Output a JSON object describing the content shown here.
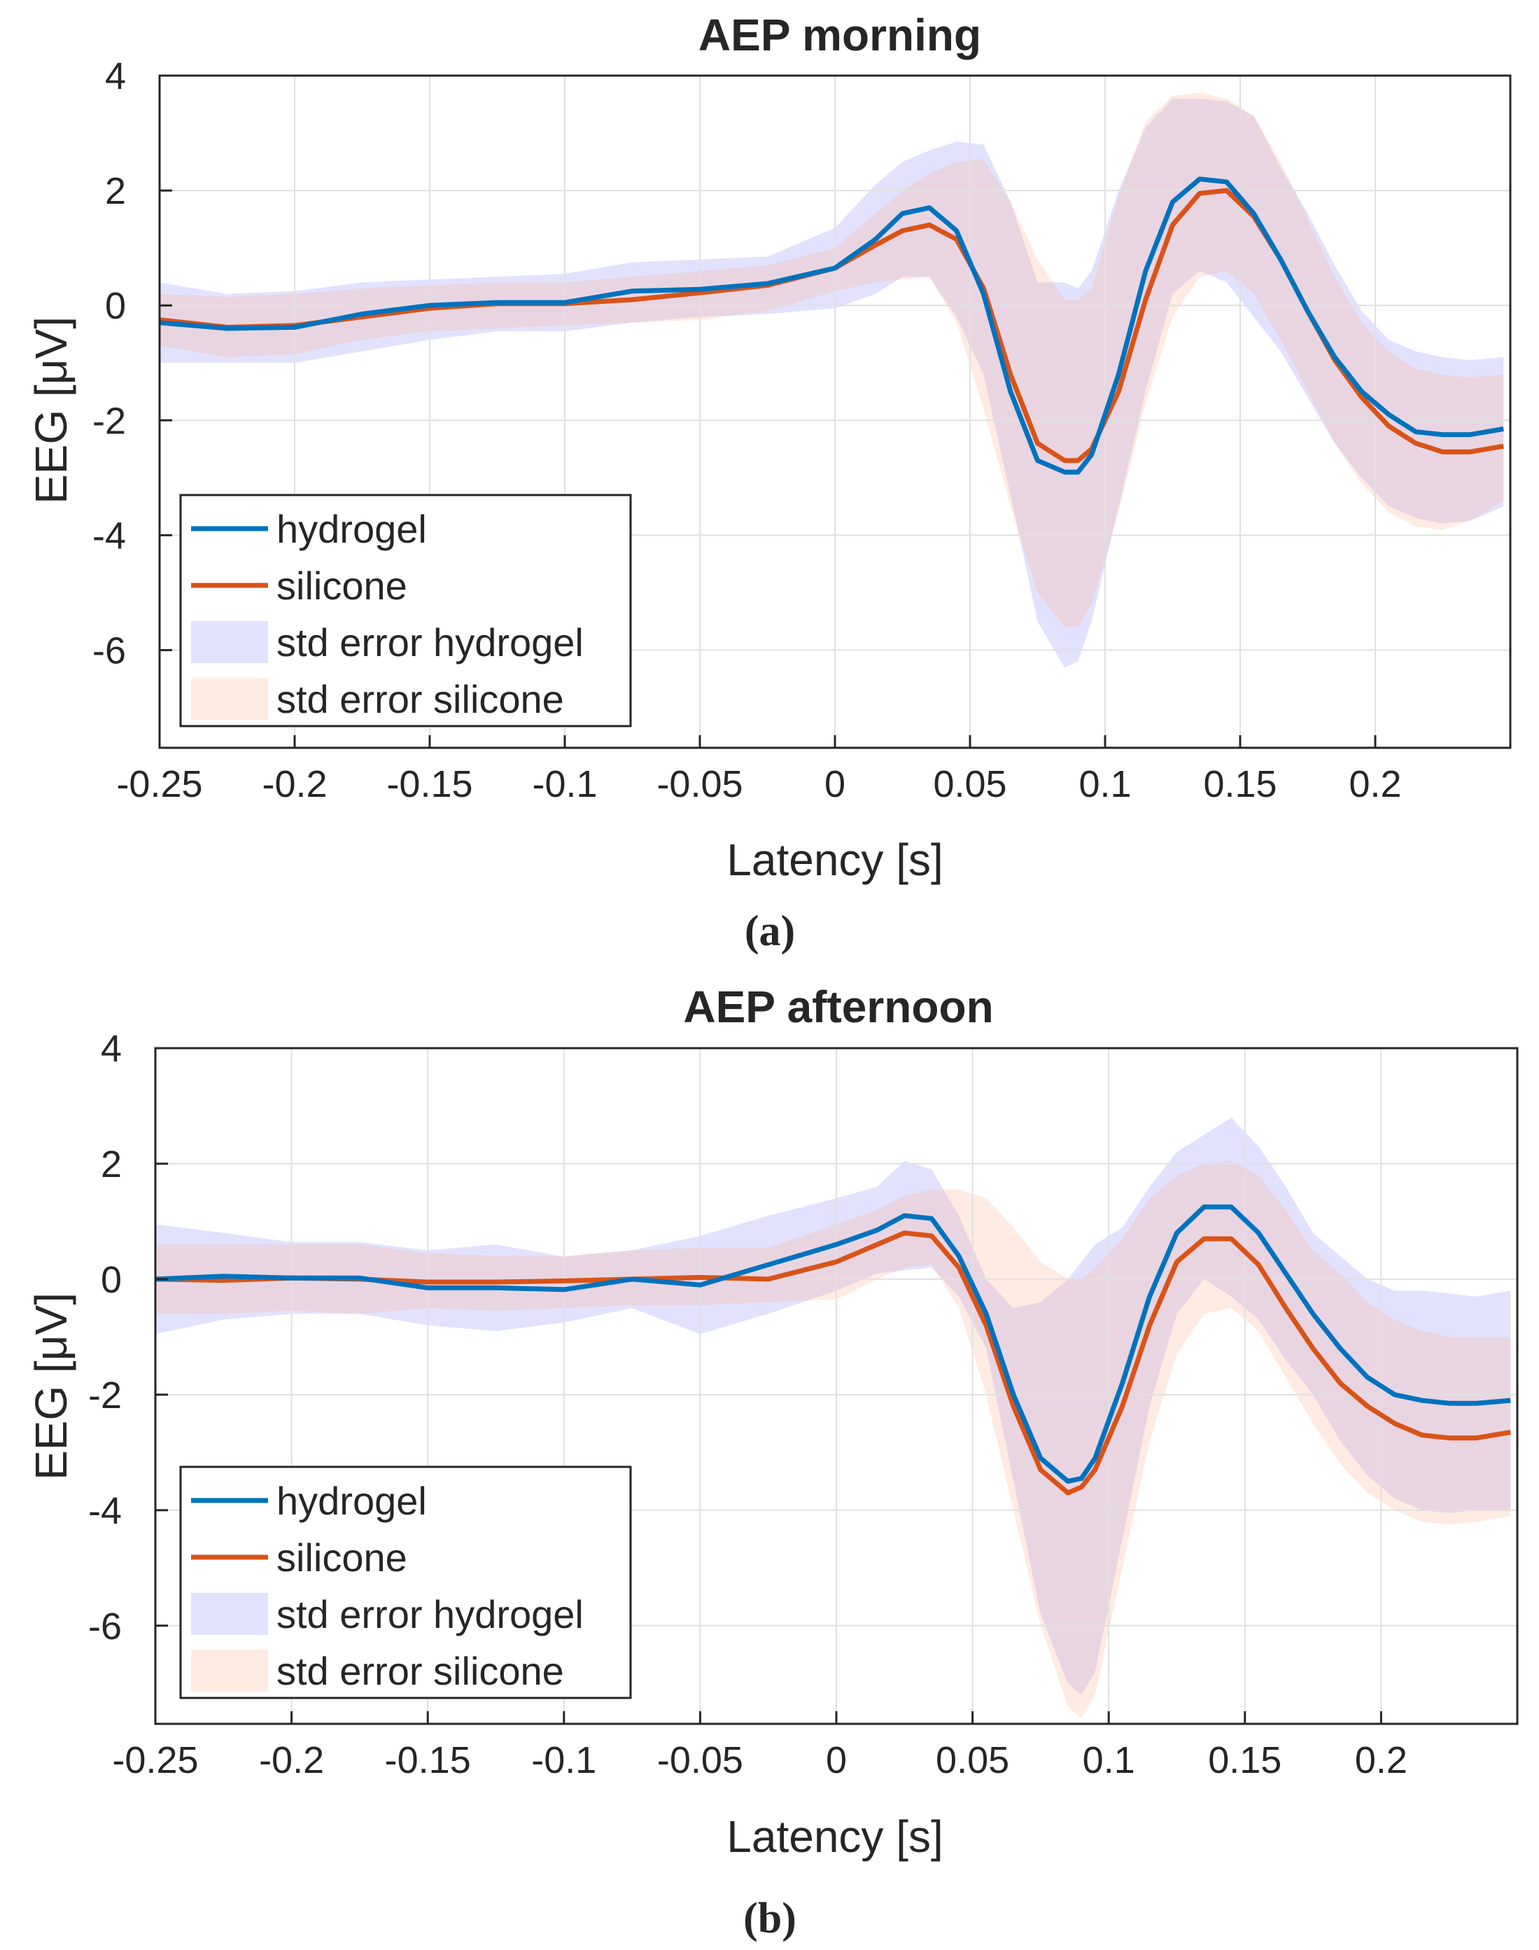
{
  "colors": {
    "hydrogel": "#0072BD",
    "silicone": "#D95319",
    "hydrogel_band": "#8c8cff",
    "silicone_band": "#ffb08c",
    "grid": "#e0e0e0",
    "axis": "#262626"
  },
  "chart_data": [
    {
      "type": "line",
      "title": "AEP morning",
      "caption": "(a)",
      "xlabel": "Latency [s]",
      "ylabel": "EEG [μV]",
      "xlim": [
        -0.25,
        0.25
      ],
      "ylim": [
        -7.7,
        4
      ],
      "xticks": [
        -0.25,
        -0.2,
        -0.15,
        -0.1,
        -0.05,
        0,
        0.05,
        0.1,
        0.15,
        0.2
      ],
      "xtick_labels": [
        "-0.25",
        "-0.2",
        "-0.15",
        "-0.1",
        "-0.05",
        "0",
        "0.05",
        "0.1",
        "0.15",
        "0.2"
      ],
      "yticks": [
        -6,
        -4,
        -2,
        0,
        2,
        4
      ],
      "ytick_labels": [
        "-6",
        "-4",
        "-2",
        "0",
        "2",
        "4"
      ],
      "grid": true,
      "legend_position": "bottom-left",
      "legend": [
        "hydrogel",
        "silicone",
        "std error hydrogel",
        "std error silicone"
      ],
      "x": [
        -0.25,
        -0.225,
        -0.2,
        -0.175,
        -0.15,
        -0.125,
        -0.1,
        -0.075,
        -0.05,
        -0.025,
        0,
        0.015,
        0.025,
        0.035,
        0.045,
        0.055,
        0.065,
        0.075,
        0.085,
        0.09,
        0.095,
        0.105,
        0.115,
        0.125,
        0.135,
        0.145,
        0.155,
        0.165,
        0.175,
        0.185,
        0.195,
        0.205,
        0.215,
        0.225,
        0.235,
        0.2475
      ],
      "series": [
        {
          "name": "hydrogel",
          "kind": "line",
          "color_key": "hydrogel",
          "values": [
            -0.3,
            -0.4,
            -0.38,
            -0.15,
            0.0,
            0.05,
            0.05,
            0.25,
            0.28,
            0.38,
            0.65,
            1.15,
            1.6,
            1.7,
            1.3,
            0.2,
            -1.5,
            -2.7,
            -2.9,
            -2.9,
            -2.6,
            -1.2,
            0.6,
            1.8,
            2.2,
            2.15,
            1.6,
            0.8,
            -0.1,
            -0.9,
            -1.5,
            -1.9,
            -2.2,
            -2.25,
            -2.25,
            -2.15
          ]
        },
        {
          "name": "silicone",
          "kind": "line",
          "color_key": "silicone",
          "values": [
            -0.25,
            -0.38,
            -0.35,
            -0.2,
            -0.05,
            0.03,
            0.03,
            0.1,
            0.22,
            0.35,
            0.65,
            1.05,
            1.3,
            1.4,
            1.15,
            0.3,
            -1.2,
            -2.4,
            -2.7,
            -2.7,
            -2.5,
            -1.5,
            0.1,
            1.4,
            1.95,
            2.0,
            1.55,
            0.8,
            -0.1,
            -0.95,
            -1.6,
            -2.1,
            -2.4,
            -2.55,
            -2.55,
            -2.45
          ]
        },
        {
          "name": "std error hydrogel",
          "kind": "band",
          "color_key": "hydrogel_band",
          "lower": [
            -1.0,
            -1.0,
            -1.0,
            -0.8,
            -0.6,
            -0.45,
            -0.45,
            -0.3,
            -0.2,
            -0.15,
            -0.05,
            0.2,
            0.5,
            0.5,
            -0.2,
            -1.2,
            -3.3,
            -5.5,
            -6.3,
            -6.2,
            -5.5,
            -3.5,
            -1.5,
            0.2,
            0.6,
            0.4,
            -0.2,
            -0.8,
            -1.6,
            -2.4,
            -3.0,
            -3.5,
            -3.7,
            -3.8,
            -3.75,
            -3.5
          ],
          "upper": [
            0.4,
            0.2,
            0.25,
            0.4,
            0.45,
            0.5,
            0.55,
            0.75,
            0.8,
            0.85,
            1.35,
            2.1,
            2.5,
            2.7,
            2.85,
            2.8,
            1.8,
            0.4,
            0.4,
            0.3,
            0.6,
            2.0,
            3.1,
            3.6,
            3.6,
            3.55,
            3.3,
            2.4,
            1.6,
            0.7,
            -0.1,
            -0.6,
            -0.8,
            -0.9,
            -0.95,
            -0.9
          ]
        },
        {
          "name": "std error silicone",
          "kind": "band",
          "color_key": "silicone_band",
          "lower": [
            -0.7,
            -0.9,
            -0.85,
            -0.6,
            -0.45,
            -0.4,
            -0.35,
            -0.3,
            -0.25,
            -0.1,
            0.25,
            0.4,
            0.45,
            0.5,
            -0.3,
            -1.8,
            -3.5,
            -5.0,
            -5.6,
            -5.6,
            -5.2,
            -3.6,
            -1.7,
            -0.2,
            0.5,
            0.6,
            0.2,
            -0.6,
            -1.5,
            -2.4,
            -3.1,
            -3.6,
            -3.85,
            -3.9,
            -3.75,
            -3.4
          ],
          "upper": [
            0.2,
            0.15,
            0.2,
            0.3,
            0.35,
            0.4,
            0.4,
            0.5,
            0.6,
            0.7,
            1.0,
            1.6,
            2.0,
            2.3,
            2.5,
            2.55,
            1.8,
            0.8,
            0.1,
            0.1,
            0.3,
            1.9,
            3.2,
            3.65,
            3.7,
            3.6,
            3.3,
            2.5,
            1.5,
            0.5,
            -0.3,
            -0.8,
            -1.1,
            -1.2,
            -1.25,
            -1.2
          ]
        }
      ]
    },
    {
      "type": "line",
      "title": "AEP afternoon",
      "caption": "(b)",
      "xlabel": "Latency [s]",
      "ylabel": "EEG [μV]",
      "xlim": [
        -0.25,
        0.25
      ],
      "ylim": [
        -7.7,
        4
      ],
      "xticks": [
        -0.25,
        -0.2,
        -0.15,
        -0.1,
        -0.05,
        0,
        0.05,
        0.1,
        0.15,
        0.2
      ],
      "xtick_labels": [
        "-0.25",
        "-0.2",
        "-0.15",
        "-0.1",
        "-0.05",
        "0",
        "0.05",
        "0.1",
        "0.15",
        "0.2"
      ],
      "yticks": [
        -6,
        -4,
        -2,
        0,
        2,
        4
      ],
      "ytick_labels": [
        "-6",
        "-4",
        "-2",
        "0",
        "2",
        "4"
      ],
      "grid": true,
      "legend_position": "bottom-left",
      "legend": [
        "hydrogel",
        "silicone",
        "std error hydrogel",
        "std error silicone"
      ],
      "x": [
        -0.25,
        -0.225,
        -0.2,
        -0.175,
        -0.15,
        -0.125,
        -0.1,
        -0.075,
        -0.05,
        -0.025,
        0,
        0.015,
        0.025,
        0.035,
        0.045,
        0.055,
        0.065,
        0.075,
        0.085,
        0.09,
        0.095,
        0.105,
        0.115,
        0.125,
        0.135,
        0.145,
        0.155,
        0.165,
        0.175,
        0.185,
        0.195,
        0.205,
        0.215,
        0.225,
        0.235,
        0.2475
      ],
      "series": [
        {
          "name": "hydrogel",
          "kind": "line",
          "color_key": "hydrogel",
          "values": [
            0.0,
            0.05,
            0.02,
            0.02,
            -0.15,
            -0.15,
            -0.18,
            0.0,
            -0.1,
            0.25,
            0.6,
            0.85,
            1.1,
            1.05,
            0.4,
            -0.6,
            -2.0,
            -3.1,
            -3.5,
            -3.45,
            -3.1,
            -1.8,
            -0.3,
            0.8,
            1.25,
            1.25,
            0.8,
            0.1,
            -0.6,
            -1.2,
            -1.7,
            -2.0,
            -2.1,
            -2.15,
            -2.15,
            -2.1
          ]
        },
        {
          "name": "silicone",
          "kind": "line",
          "color_key": "silicone",
          "values": [
            0.0,
            -0.02,
            0.02,
            0.0,
            -0.05,
            -0.05,
            -0.03,
            0.0,
            0.03,
            0.0,
            0.3,
            0.6,
            0.8,
            0.75,
            0.2,
            -0.8,
            -2.2,
            -3.3,
            -3.7,
            -3.6,
            -3.3,
            -2.2,
            -0.8,
            0.3,
            0.7,
            0.7,
            0.25,
            -0.5,
            -1.2,
            -1.8,
            -2.2,
            -2.5,
            -2.7,
            -2.75,
            -2.75,
            -2.65
          ]
        },
        {
          "name": "std error hydrogel",
          "kind": "band",
          "color_key": "hydrogel_band",
          "lower": [
            -0.95,
            -0.7,
            -0.6,
            -0.6,
            -0.8,
            -0.9,
            -0.75,
            -0.5,
            -0.95,
            -0.6,
            -0.2,
            0.1,
            0.15,
            0.2,
            -0.3,
            -1.2,
            -3.5,
            -5.8,
            -7.0,
            -7.2,
            -6.8,
            -4.5,
            -2.2,
            -0.6,
            0.0,
            -0.3,
            -0.7,
            -1.4,
            -2.0,
            -2.8,
            -3.4,
            -3.8,
            -4.0,
            -4.05,
            -4.0,
            -4.0
          ]
        },
        {
          "name": "std error silicone",
          "kind": "band",
          "color_key": "silicone_band",
          "lower": [
            -0.6,
            -0.6,
            -0.55,
            -0.6,
            -0.5,
            -0.55,
            -0.5,
            -0.45,
            -0.45,
            -0.4,
            -0.35,
            0.0,
            0.2,
            0.25,
            -0.5,
            -2.0,
            -4.0,
            -6.0,
            -7.4,
            -7.6,
            -7.2,
            -5.0,
            -2.8,
            -1.3,
            -0.6,
            -0.5,
            -0.9,
            -1.7,
            -2.5,
            -3.2,
            -3.7,
            -4.0,
            -4.2,
            -4.25,
            -4.2,
            -4.1
          ],
          "upper": [
            0.6,
            0.6,
            0.6,
            0.6,
            0.45,
            0.4,
            0.4,
            0.5,
            0.55,
            0.55,
            0.95,
            1.2,
            1.45,
            1.55,
            1.55,
            1.4,
            0.9,
            0.3,
            0.0,
            0.0,
            0.2,
            0.7,
            1.4,
            1.8,
            2.0,
            2.05,
            1.8,
            1.2,
            0.5,
            0.1,
            -0.4,
            -0.7,
            -0.9,
            -1.0,
            -1.0,
            -1.0
          ]
        }
      ]
    }
  ]
}
